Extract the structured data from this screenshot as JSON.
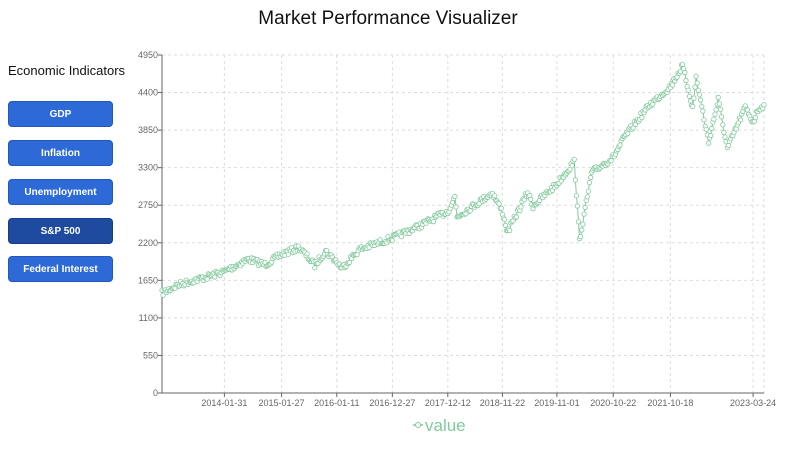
{
  "app": {
    "title": "Market Performance Visualizer"
  },
  "sidebar": {
    "heading": "Economic Indicators",
    "buttons": [
      {
        "label": "GDP",
        "active": false
      },
      {
        "label": "Inflation",
        "active": false
      },
      {
        "label": "Unemployment",
        "active": false
      },
      {
        "label": "S&P 500",
        "active": true
      },
      {
        "label": "Federal Interest",
        "active": false
      }
    ]
  },
  "colors": {
    "series": "#82ca9d",
    "button": "#2d6ad8",
    "button_active": "#1e4aa0",
    "grid": "#dddddd"
  },
  "chart_data": {
    "type": "line",
    "grid": true,
    "legend_position": "bottom-center",
    "series": [
      {
        "name": "value",
        "marker": "open-circle",
        "points": [
          [
            "2013-01-02",
            1460
          ],
          [
            "2013-04-01",
            1570
          ],
          [
            "2013-07-01",
            1640
          ],
          [
            "2013-10-01",
            1690
          ],
          [
            "2014-01-31",
            1780
          ],
          [
            "2014-07-01",
            1960
          ],
          [
            "2014-10-15",
            1880
          ],
          [
            "2015-01-27",
            2030
          ],
          [
            "2015-05-20",
            2130
          ],
          [
            "2015-08-25",
            1870
          ],
          [
            "2015-11-01",
            2080
          ],
          [
            "2016-01-11",
            1920
          ],
          [
            "2016-02-11",
            1830
          ],
          [
            "2016-06-01",
            2100
          ],
          [
            "2016-12-27",
            2270
          ],
          [
            "2017-06-01",
            2430
          ],
          [
            "2017-12-12",
            2660
          ],
          [
            "2018-01-26",
            2870
          ],
          [
            "2018-02-08",
            2580
          ],
          [
            "2018-09-20",
            2930
          ],
          [
            "2018-11-22",
            2650
          ],
          [
            "2018-12-24",
            2350
          ],
          [
            "2019-04-30",
            2940
          ],
          [
            "2019-06-03",
            2740
          ],
          [
            "2019-11-01",
            3060
          ],
          [
            "2020-02-19",
            3390
          ],
          [
            "2020-03-23",
            2240
          ],
          [
            "2020-06-08",
            3230
          ],
          [
            "2020-10-22",
            3450
          ],
          [
            "2021-01-01",
            3750
          ],
          [
            "2021-06-01",
            4200
          ],
          [
            "2021-10-18",
            4490
          ],
          [
            "2022-01-03",
            4790
          ],
          [
            "2022-03-08",
            4170
          ],
          [
            "2022-03-29",
            4630
          ],
          [
            "2022-06-16",
            3670
          ],
          [
            "2022-08-16",
            4300
          ],
          [
            "2022-10-12",
            3580
          ],
          [
            "2023-02-02",
            4180
          ],
          [
            "2023-03-24",
            3970
          ],
          [
            "2023-05-01",
            4170
          ],
          [
            "2023-06-01",
            4220
          ]
        ]
      }
    ],
    "x_ticks": [
      "2014-01-31",
      "2015-01-27",
      "2016-01-11",
      "2016-12-27",
      "2017-12-12",
      "2018-11-22",
      "2019-11-01",
      "2020-10-22",
      "2021-10-18",
      "2023-03-24"
    ],
    "y_ticks": [
      0,
      550,
      1100,
      1650,
      2200,
      2750,
      3300,
      3850,
      4400,
      4950
    ],
    "ylim": [
      0,
      4950
    ],
    "xlim": [
      "2013-01-02",
      "2023-06-01"
    ]
  }
}
